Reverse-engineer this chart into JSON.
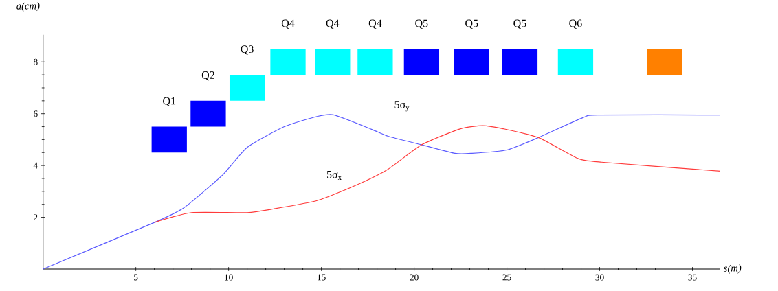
{
  "chart_data": {
    "type": "line",
    "xlabel": "s(m)",
    "ylabel": "a(cm)",
    "xlim": [
      0,
      36.5
    ],
    "ylim": [
      0,
      9.05
    ],
    "xticks": [
      5,
      10,
      15,
      20,
      25,
      30,
      35
    ],
    "yticks": [
      2,
      4,
      6,
      8
    ],
    "annotations": [
      "5σ$_{y}$",
      "5σ$_{x}$"
    ],
    "series": [
      {
        "type": "bar",
        "x": [
          6.8,
          8.9,
          11.0,
          13.2,
          15.6,
          17.9,
          20.4,
          23.1,
          25.7,
          28.7,
          33.5
        ],
        "base": [
          4.5,
          5.5,
          6.5,
          7.5,
          7.5,
          7.5,
          7.5,
          7.5,
          7.5,
          7.5,
          7.5
        ],
        "values": [
          1,
          1,
          1,
          1,
          1,
          1,
          1,
          1,
          1,
          1,
          1
        ],
        "colors": [
          "#0000ff",
          "#0000ff",
          "#00ffff",
          "#00ffff",
          "#00ffff",
          "#00ffff",
          "#0000ff",
          "#0000ff",
          "#0000ff",
          "#00ffff",
          "#ff8000"
        ],
        "value_labels": [
          "Q1",
          "Q2",
          "Q3",
          "Q4",
          "Q4",
          "Q4",
          "Q5",
          "Q5",
          "Q5",
          "Q6",
          null
        ]
      },
      {
        "color": "#5a5aff",
        "x": [
          0,
          6,
          7.6,
          9.7,
          11.0,
          13.0,
          14.8,
          15.7,
          17.7,
          18.6,
          20.4,
          22.2,
          23.1,
          25.0,
          26.7,
          29.1,
          29.9,
          36.5
        ],
        "values": [
          0,
          1.8,
          2.37,
          3.65,
          4.7,
          5.5,
          5.9,
          5.95,
          5.4,
          5.13,
          4.8,
          4.47,
          4.47,
          4.6,
          5.08,
          5.85,
          5.95,
          5.95
        ]
      },
      {
        "color": "#ff3b3b",
        "x": [
          6,
          8.0,
          11.0,
          12.4,
          14.8,
          17.0,
          18.6,
          20.4,
          22.5,
          23.7,
          24.8,
          26.7,
          28.8,
          30.1,
          36.5
        ],
        "values": [
          1.8,
          2.18,
          2.18,
          2.32,
          2.65,
          3.28,
          3.86,
          4.8,
          5.42,
          5.54,
          5.42,
          5.08,
          4.28,
          4.13,
          3.78
        ]
      }
    ]
  }
}
